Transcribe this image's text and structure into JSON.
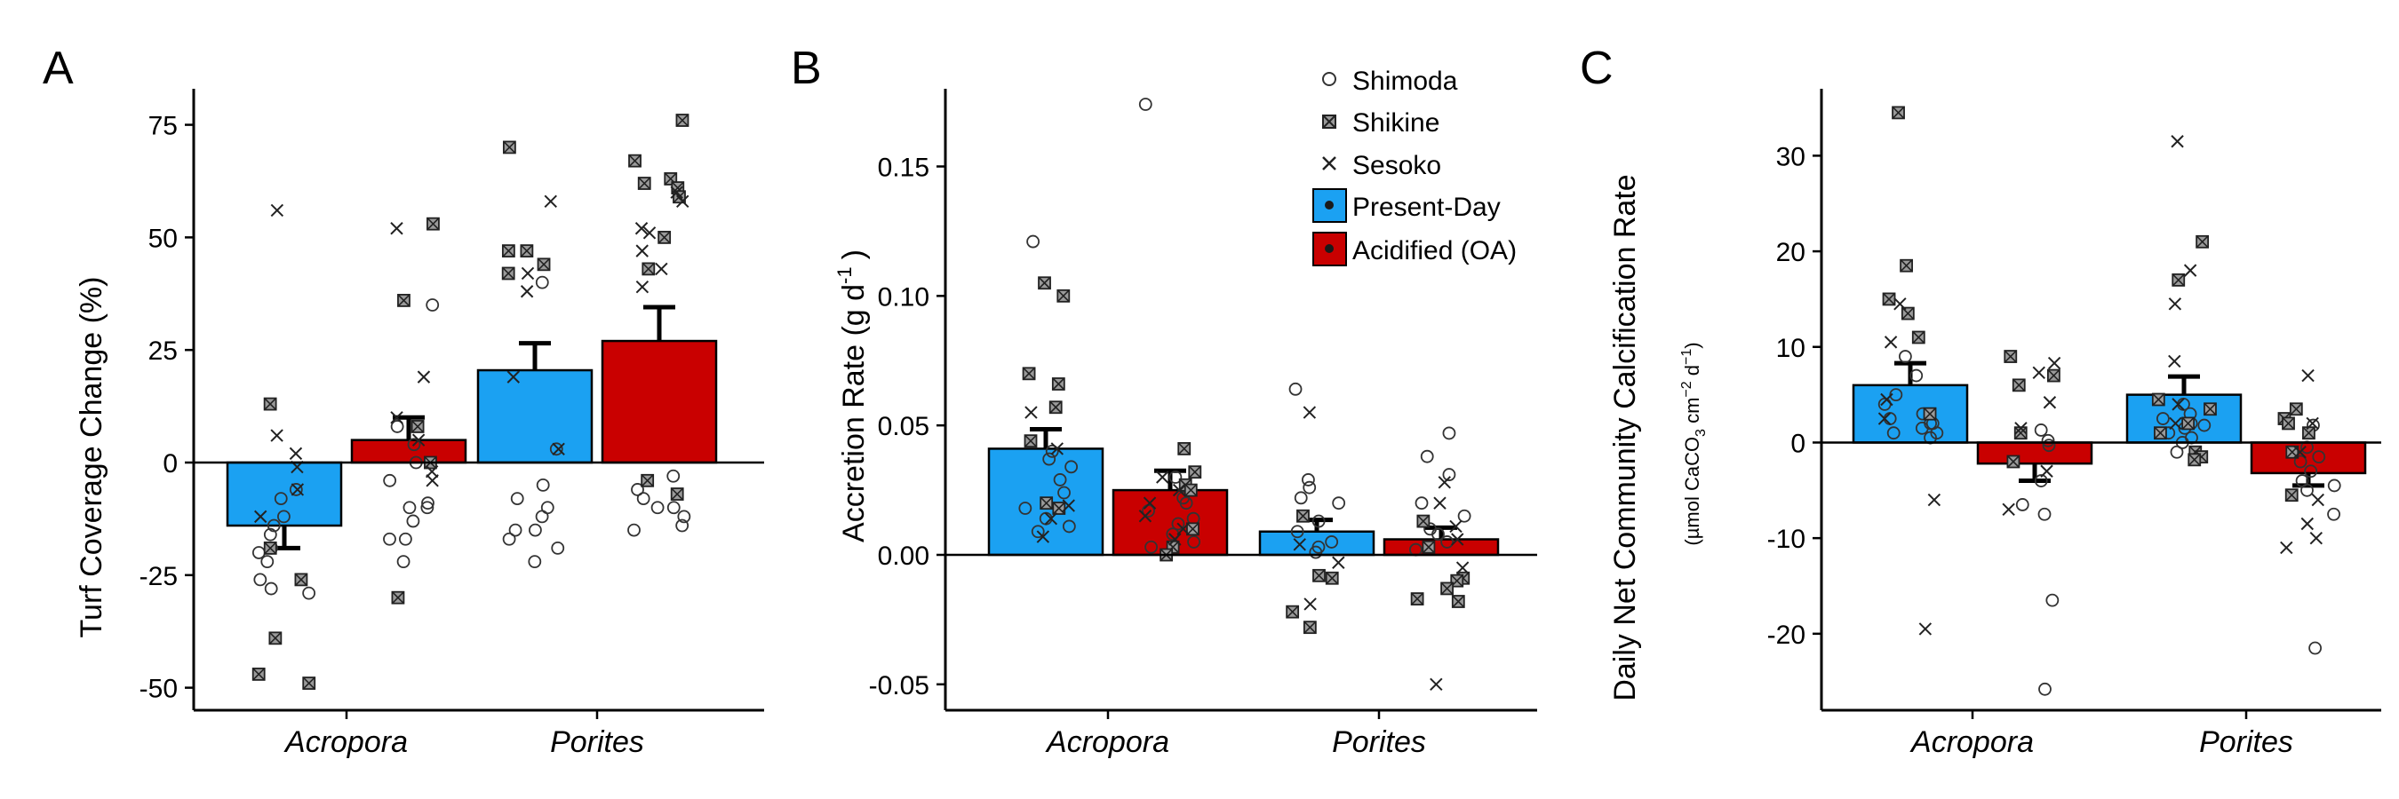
{
  "colors": {
    "present": "#1BA1F2",
    "acidified": "#C90000",
    "point_fill": "#9a9a9a"
  },
  "legend": {
    "sites": [
      {
        "label": "Shimoda",
        "marker": "circle"
      },
      {
        "label": "Shikine",
        "marker": "square-x"
      },
      {
        "label": "Sesoko",
        "marker": "cross"
      }
    ],
    "treatments": [
      {
        "label": "Present-Day",
        "color": "#1BA1F2"
      },
      {
        "label": "Acidified (OA)",
        "color": "#C90000"
      }
    ],
    "placement": "top-right of panel B"
  },
  "chart_data": [
    {
      "panel": "A",
      "type": "bar",
      "ylabel": "Turf Coverage Change (%)",
      "ylim": [
        -55,
        83
      ],
      "yticks": [
        75,
        50,
        25,
        0,
        -25,
        -50
      ],
      "ytick_labels": [
        "75",
        "50",
        "25",
        "0",
        "-25",
        "-50"
      ],
      "categories": [
        "Acropora",
        "Porites"
      ],
      "grid": false,
      "series": [
        {
          "name": "Present-Day",
          "values": [
            -14,
            20.5
          ],
          "errors": [
            5,
            6
          ]
        },
        {
          "name": "Acidified (OA)",
          "values": [
            5,
            27
          ],
          "errors": [
            5,
            7.5
          ]
        }
      ],
      "points": [
        [
          {
            "circle": [
              -8,
              -12,
              -16,
              -20,
              -22,
              -26,
              -29,
              -28,
              -19,
              -14,
              -6
            ],
            "square_x": [
              13,
              -39,
              -47,
              -49,
              -26,
              -19
            ],
            "cross": [
              56,
              6,
              2,
              -1,
              -6,
              -12
            ]
          },
          {
            "circle": [
              35,
              8,
              4,
              0,
              -4,
              -9,
              -10,
              -10,
              -13,
              -17,
              -17,
              -22
            ],
            "square_x": [
              53,
              36,
              8,
              0,
              -30
            ],
            "cross": [
              52,
              19,
              10,
              5,
              -2,
              -4
            ]
          }
        ],
        [
          {
            "circle": [
              40,
              3,
              -5,
              -8,
              -10,
              -12,
              -15,
              -15,
              -17,
              -19,
              -22
            ],
            "square_x": [
              70,
              47,
              47,
              44,
              42
            ],
            "cross": [
              58,
              42,
              38,
              19,
              3
            ]
          },
          {
            "circle": [
              -3,
              -6,
              -8,
              -10,
              -10,
              -12,
              -14,
              -15
            ],
            "square_x": [
              76,
              67,
              63,
              62,
              61,
              59,
              50,
              43,
              -4,
              -7
            ],
            "cross": [
              60,
              58,
              52,
              51,
              47,
              43,
              39
            ]
          }
        ]
      ]
    },
    {
      "panel": "B",
      "type": "bar",
      "ylabel": "Accretion Rate (g d",
      "ylabel_sup": "-1",
      "ylabel_end": ")",
      "ylim": [
        -0.06,
        0.18
      ],
      "yticks": [
        0.15,
        0.1,
        0.05,
        0,
        -0.05
      ],
      "ytick_labels": [
        "0.15",
        "0.10",
        "0.05",
        "0.00",
        "-0.05"
      ],
      "categories": [
        "Acropora",
        "Porites"
      ],
      "grid": false,
      "series": [
        {
          "name": "Present-Day",
          "values": [
            0.041,
            0.009
          ],
          "errors": [
            0.0075,
            0.0045
          ]
        },
        {
          "name": "Acidified (OA)",
          "values": [
            0.025,
            0.006
          ],
          "errors": [
            0.0075,
            0.0045
          ]
        }
      ],
      "points": [
        [
          {
            "circle": [
              0.121,
              0.04,
              0.037,
              0.034,
              0.029,
              0.024,
              0.018,
              0.014,
              0.011,
              0.009
            ],
            "square_x": [
              0.105,
              0.1,
              0.07,
              0.066,
              0.057,
              0.044,
              0.02,
              0.018
            ],
            "cross": [
              0.055,
              0.041,
              0.019,
              0.014,
              0.007
            ]
          },
          {
            "circle": [
              0.174,
              0.03,
              0.022,
              0.02,
              0.017,
              0.014,
              0.012,
              0.008,
              0.005,
              0.003
            ],
            "square_x": [
              0.041,
              0.032,
              0.027,
              0.025,
              0.01,
              0.003,
              0.0
            ],
            "cross": [
              0.03,
              0.025,
              0.02,
              0.015,
              0.01,
              0.006
            ]
          }
        ],
        [
          {
            "circle": [
              0.064,
              0.029,
              0.026,
              0.022,
              0.02,
              0.013,
              0.009,
              0.005,
              0.003,
              0.001
            ],
            "square_x": [
              0.015,
              -0.008,
              -0.009,
              -0.022,
              -0.028
            ],
            "cross": [
              0.055,
              0.004,
              -0.003,
              -0.019
            ]
          },
          {
            "circle": [
              0.047,
              0.038,
              0.031,
              0.02,
              0.015,
              0.01,
              0.008,
              0.005,
              0.002
            ],
            "square_x": [
              0.013,
              0.003,
              -0.009,
              -0.01,
              -0.013,
              -0.017,
              -0.018
            ],
            "cross": [
              0.028,
              0.02,
              0.011,
              0.006,
              -0.005,
              -0.05
            ]
          }
        ]
      ]
    },
    {
      "panel": "C",
      "type": "bar",
      "ylabel": "Daily Net Community Calcification Rate",
      "ylabel_units_pre": "(µmol CaCO",
      "ylabel_units_sub": "3",
      "ylabel_units_mid": " cm",
      "ylabel_units_sup1": "−2",
      "ylabel_units_mid2": " d",
      "ylabel_units_sup2": "−1",
      "ylabel_units_end": ")",
      "ylim": [
        -28,
        37
      ],
      "yticks": [
        30,
        20,
        10,
        0,
        -10,
        -20
      ],
      "ytick_labels": [
        "30",
        "20",
        "10",
        "0",
        "-10",
        "-20"
      ],
      "categories": [
        "Acropora",
        "Porites"
      ],
      "grid": false,
      "series": [
        {
          "name": "Present-Day",
          "values": [
            6,
            5
          ],
          "errors": [
            2.3,
            1.9
          ]
        },
        {
          "name": "Acidified (OA)",
          "values": [
            -2.2,
            -3.2
          ],
          "errors": [
            1.8,
            1.3
          ]
        }
      ],
      "points": [
        [
          {
            "circle": [
              9,
              7,
              5,
              4,
              3,
              2.5,
              2,
              2,
              1.5,
              1,
              1,
              0.5
            ],
            "square_x": [
              34.5,
              18.5,
              15,
              13.5,
              11,
              3
            ],
            "cross": [
              14.5,
              10.5,
              4.5,
              2.5,
              -6,
              -19.5
            ]
          },
          {
            "circle": [
              1.3,
              0.2,
              -0.3,
              -4,
              -6.5,
              -7.5,
              -16.5,
              -25.8
            ],
            "square_x": [
              9,
              7,
              6,
              1,
              -2
            ],
            "cross": [
              8.3,
              7.3,
              4.2,
              1.5,
              -3,
              -7
            ]
          }
        ],
        [
          {
            "circle": [
              4,
              3,
              2.5,
              2,
              1.8,
              1.5,
              1,
              0.5,
              0,
              -1
            ],
            "square_x": [
              21,
              17,
              4.5,
              3.5,
              2,
              1,
              -1,
              -1.5,
              -1.8
            ],
            "cross": [
              31.5,
              18,
              14.5,
              8.5,
              4,
              2
            ]
          },
          {
            "circle": [
              1.8,
              -0.5,
              -1.5,
              -2,
              -3,
              -4,
              -4.5,
              -5,
              -7.5,
              -21.5
            ],
            "square_x": [
              3.5,
              2.5,
              2,
              1,
              -1,
              -5.5
            ],
            "cross": [
              7,
              2,
              -1,
              -6,
              -8.5,
              -10,
              -11
            ]
          }
        ]
      ]
    }
  ]
}
